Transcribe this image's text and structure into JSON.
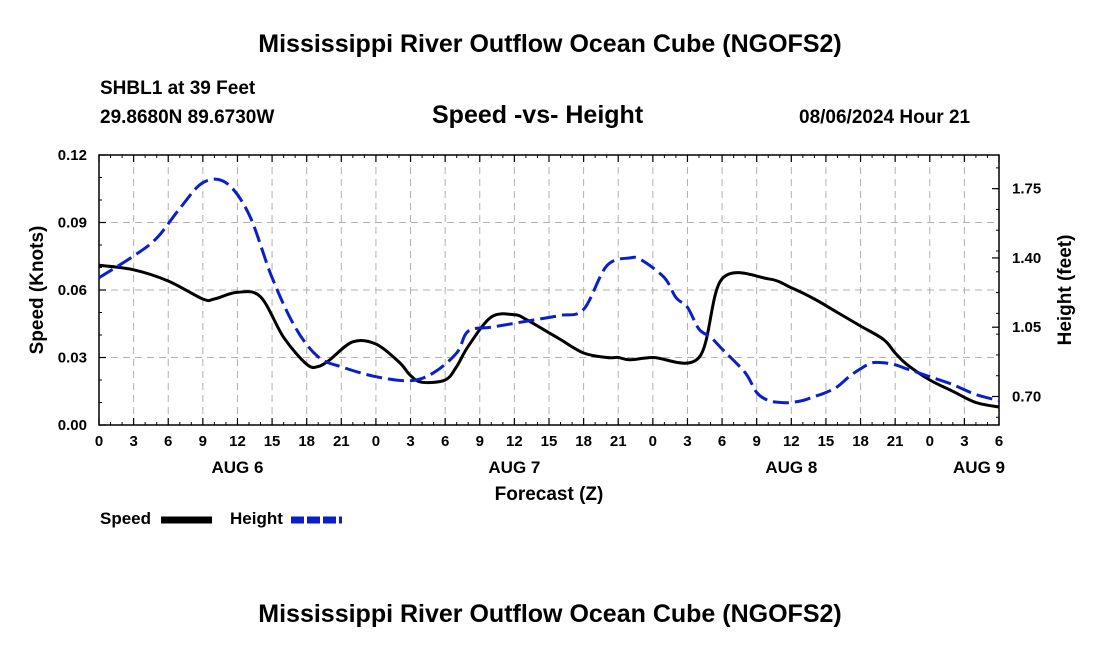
{
  "page": {
    "title_top": "Mississippi River Outflow Ocean Cube (NGOFS2)",
    "title_bottom": "Mississippi River Outflow Ocean Cube (NGOFS2)",
    "station": "SHBL1 at 39 Feet",
    "coords": "29.8680N  89.6730W",
    "subtitle": "Speed -vs- Height",
    "datetime": "08/06/2024 Hour 21"
  },
  "chart_data": {
    "type": "line",
    "title": "Speed -vs- Height",
    "xlabel": "Forecast (Z)",
    "ylabel": "Speed (Knots)",
    "y2label": "Height (feet)",
    "x_ticks": [
      "0",
      "3",
      "6",
      "9",
      "12",
      "15",
      "18",
      "21",
      "0",
      "3",
      "6",
      "9",
      "12",
      "15",
      "18",
      "21",
      "0",
      "3",
      "6",
      "9",
      "12",
      "15",
      "18",
      "21",
      "0",
      "3",
      "6"
    ],
    "x_range_hours": [
      0,
      78
    ],
    "date_labels": [
      {
        "label": "AUG 6",
        "hour": 12
      },
      {
        "label": "AUG 7",
        "hour": 36
      },
      {
        "label": "AUG 8",
        "hour": 60
      },
      {
        "label": "AUG 9",
        "hour": 78
      }
    ],
    "ylim": [
      0,
      0.12
    ],
    "y_ticks": [
      "0.00",
      "0.03",
      "0.06",
      "0.09",
      "0.12"
    ],
    "y2lim": [
      0.556,
      1.92
    ],
    "y2_ticks": [
      "0.70",
      "1.05",
      "1.40",
      "1.75"
    ],
    "grid": true,
    "legend": [
      {
        "name": "Speed",
        "color": "#000000",
        "style": "solid"
      },
      {
        "name": "Height",
        "color": "#0a1ecc",
        "style": "dashed"
      }
    ],
    "series": [
      {
        "name": "Speed",
        "axis": "left",
        "color": "#000000",
        "x": [
          0,
          3,
          6,
          9,
          10,
          12,
          14,
          16,
          18,
          19,
          20,
          22,
          24,
          26,
          27,
          28,
          30,
          31,
          32,
          34,
          36,
          37,
          39,
          40,
          42,
          44,
          45,
          46,
          48,
          52,
          54,
          58,
          60,
          62,
          64,
          66,
          68,
          69,
          70,
          72,
          74,
          76,
          78
        ],
        "y": [
          0.071,
          0.069,
          0.064,
          0.056,
          0.056,
          0.059,
          0.057,
          0.039,
          0.027,
          0.026,
          0.029,
          0.037,
          0.036,
          0.028,
          0.022,
          0.019,
          0.02,
          0.026,
          0.035,
          0.048,
          0.049,
          0.047,
          0.041,
          0.038,
          0.032,
          0.03,
          0.03,
          0.029,
          0.03,
          0.03,
          0.065,
          0.065,
          0.061,
          0.056,
          0.05,
          0.044,
          0.038,
          0.032,
          0.027,
          0.02,
          0.015,
          0.01,
          0.008
        ]
      },
      {
        "name": "Height",
        "axis": "right",
        "color": "#0a1ecc",
        "x": [
          0,
          3,
          5,
          7,
          9,
          11,
          13,
          15,
          17,
          19,
          21,
          24,
          27,
          29,
          31,
          32,
          34,
          36,
          38,
          40,
          42,
          44,
          46,
          47,
          49,
          50,
          51,
          52,
          53,
          54,
          56,
          57,
          58,
          59,
          60,
          61,
          62,
          63,
          64,
          65,
          66,
          67,
          68,
          69,
          70,
          71,
          72,
          74,
          76,
          78
        ],
        "y": [
          1.3,
          1.41,
          1.5,
          1.65,
          1.78,
          1.78,
          1.62,
          1.3,
          1.05,
          0.9,
          0.85,
          0.8,
          0.78,
          0.82,
          0.92,
          1.03,
          1.05,
          1.07,
          1.09,
          1.11,
          1.14,
          1.36,
          1.4,
          1.39,
          1.3,
          1.2,
          1.15,
          1.04,
          1.0,
          0.94,
          0.82,
          0.72,
          0.68,
          0.67,
          0.67,
          0.68,
          0.7,
          0.72,
          0.75,
          0.8,
          0.84,
          0.87,
          0.87,
          0.86,
          0.84,
          0.82,
          0.8,
          0.76,
          0.71,
          0.68
        ]
      }
    ]
  },
  "legend": {
    "speed_label": "Speed",
    "height_label": "Height"
  }
}
